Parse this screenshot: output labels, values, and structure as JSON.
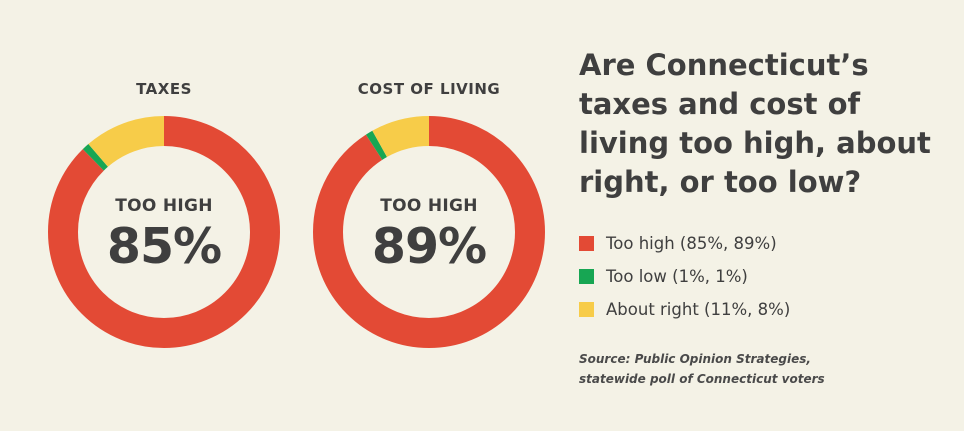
{
  "colors": {
    "background": "#f4f2e6",
    "too_high": "#e34a35",
    "too_low": "#17a653",
    "about_right": "#f7cc49",
    "text": "#3f3f3f"
  },
  "charts": [
    {
      "title": "TAXES",
      "center_label": "TOO HIGH",
      "center_value": "85%"
    },
    {
      "title": "COST OF LIVING",
      "center_label": "TOO HIGH",
      "center_value": "89%"
    }
  ],
  "question": "Are Connecticut’s taxes and cost of living too high, about right, or too low?",
  "legend": [
    {
      "label": "Too high (85%, 89%)",
      "color": "#e34a35"
    },
    {
      "label": "Too low (1%, 1%)",
      "color": "#17a653"
    },
    {
      "label": "About right (11%, 8%)",
      "color": "#f7cc49"
    }
  ],
  "source": {
    "line1": "Source: Public Opinion Strategies,",
    "line2": "statewide poll of Connecticut voters"
  },
  "chart_data": [
    {
      "type": "pie",
      "title": "TAXES",
      "categories": [
        "Too high",
        "Too low",
        "About right"
      ],
      "values": [
        85,
        1,
        11
      ],
      "colors": [
        "#e34a35",
        "#17a653",
        "#f7cc49"
      ],
      "center_text": "TOO HIGH 85%"
    },
    {
      "type": "pie",
      "title": "COST OF LIVING",
      "categories": [
        "Too high",
        "Too low",
        "About right"
      ],
      "values": [
        89,
        1,
        8
      ],
      "colors": [
        "#e34a35",
        "#17a653",
        "#f7cc49"
      ],
      "center_text": "TOO HIGH 89%"
    }
  ]
}
